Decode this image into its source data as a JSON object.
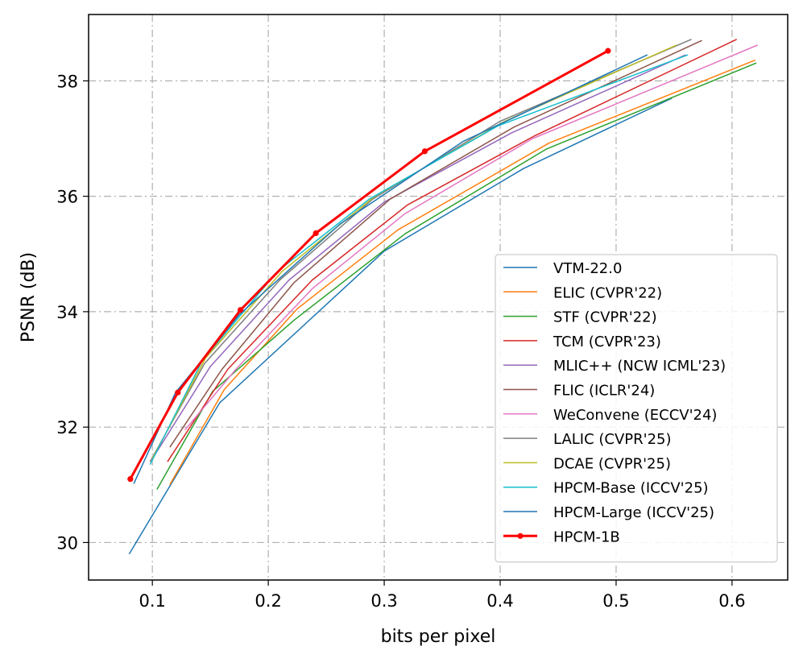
{
  "chart_data": {
    "type": "line",
    "xlabel": "bits per pixel",
    "ylabel": "PSNR (dB)",
    "xlim": [
      0.045,
      0.648
    ],
    "ylim": [
      29.35,
      39.15
    ],
    "xticks": [
      0.1,
      0.2,
      0.3,
      0.4,
      0.5,
      0.6
    ],
    "xtick_labels": [
      "0.1",
      "0.2",
      "0.3",
      "0.4",
      "0.5",
      "0.6"
    ],
    "yticks": [
      30,
      32,
      34,
      36,
      38
    ],
    "ytick_labels": [
      "30",
      "32",
      "34",
      "36",
      "38"
    ],
    "grid": true,
    "legend_position": "lower-right",
    "series": [
      {
        "name": "VTM-22.0",
        "color": "#1f77b4",
        "width": 1.5,
        "marker": false,
        "x": [
          0.08,
          0.158,
          0.3,
          0.42,
          0.548
        ],
        "y": [
          29.8,
          32.42,
          35.05,
          36.48,
          37.7
        ]
      },
      {
        "name": "ELIC (CVPR'22)",
        "color": "#ff7f0e",
        "width": 1.5,
        "marker": false,
        "x": [
          0.115,
          0.162,
          0.225,
          0.312,
          0.442,
          0.62
        ],
        "y": [
          31.0,
          32.65,
          34.05,
          35.42,
          36.92,
          38.36
        ]
      },
      {
        "name": "STF (CVPR'22)",
        "color": "#2ca02c",
        "width": 1.5,
        "marker": false,
        "x": [
          0.104,
          0.152,
          0.222,
          0.318,
          0.44,
          0.621
        ],
        "y": [
          30.92,
          32.62,
          33.85,
          35.35,
          36.82,
          38.31
        ]
      },
      {
        "name": "TCM (CVPR'23)",
        "color": "#d62728",
        "width": 1.5,
        "marker": false,
        "x": [
          0.113,
          0.165,
          0.238,
          0.32,
          0.43,
          0.604
        ],
        "y": [
          31.4,
          33.0,
          34.55,
          35.85,
          37.05,
          38.72
        ]
      },
      {
        "name": "MLIC++ (NCW ICML'23)",
        "color": "#9467bd",
        "width": 1.5,
        "marker": false,
        "x": [
          0.1,
          0.15,
          0.218,
          0.3,
          0.41,
          0.56
        ],
        "y": [
          31.45,
          33.05,
          34.55,
          35.9,
          37.1,
          38.45
        ]
      },
      {
        "name": "FLIC (ICLR'24)",
        "color": "#8c564b",
        "width": 1.5,
        "marker": false,
        "x": [
          0.115,
          0.16,
          0.222,
          0.305,
          0.412,
          0.574
        ],
        "y": [
          31.65,
          33.0,
          34.5,
          35.95,
          37.2,
          38.7
        ]
      },
      {
        "name": "WeConvene (ECCV'24)",
        "color": "#e377c2",
        "width": 1.5,
        "marker": false,
        "x": [
          0.128,
          0.172,
          0.238,
          0.318,
          0.428,
          0.622
        ],
        "y": [
          31.95,
          33.0,
          34.4,
          35.7,
          37.0,
          38.62
        ]
      },
      {
        "name": "LALIC (CVPR'25)",
        "color": "#7f7f7f",
        "width": 1.5,
        "marker": false,
        "x": [
          0.098,
          0.145,
          0.21,
          0.29,
          0.4,
          0.565
        ],
        "y": [
          31.4,
          33.1,
          34.55,
          35.95,
          37.3,
          38.72
        ]
      },
      {
        "name": "DCAE (CVPR'25)",
        "color": "#bcbd22",
        "width": 1.5,
        "marker": false,
        "x": [
          0.1,
          0.146,
          0.212,
          0.292,
          0.404,
          0.552
        ],
        "y": [
          31.45,
          33.2,
          34.7,
          36.0,
          37.3,
          38.62
        ]
      },
      {
        "name": "HPCM-Base (ICCV'25)",
        "color": "#17becf",
        "width": 1.5,
        "marker": false,
        "x": [
          0.098,
          0.143,
          0.208,
          0.287,
          0.398,
          0.562
        ],
        "y": [
          31.35,
          33.15,
          34.7,
          35.95,
          37.22,
          38.45
        ]
      },
      {
        "name": "HPCM-Large (ICCV'25)",
        "color": "#1f77b4",
        "width": 1.5,
        "marker": false,
        "x": [
          0.084,
          0.12,
          0.175,
          0.262,
          0.368,
          0.527
        ],
        "y": [
          31.02,
          32.6,
          33.95,
          35.52,
          36.95,
          38.45
        ]
      },
      {
        "name": "HPCM-1B",
        "color": "#ff0000",
        "width": 3,
        "marker": true,
        "x": [
          0.081,
          0.122,
          0.176,
          0.241,
          0.335,
          0.493
        ],
        "y": [
          31.1,
          32.6,
          34.03,
          35.36,
          36.78,
          38.52
        ]
      }
    ]
  }
}
